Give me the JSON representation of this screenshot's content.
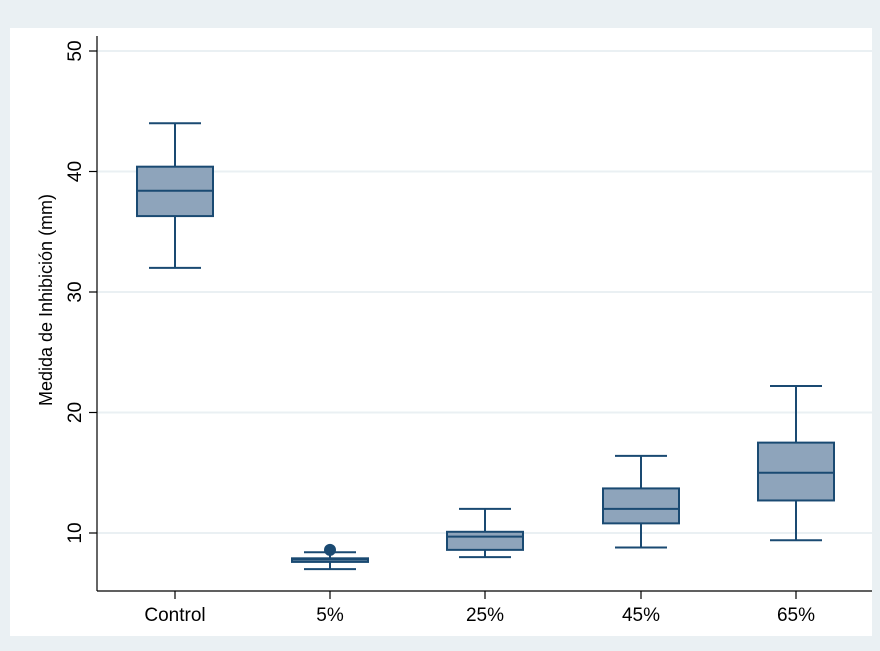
{
  "chart_data": {
    "type": "box",
    "ylabel": "Medida de Inhibición (mm)",
    "ylim": [
      5,
      51
    ],
    "yticks": [
      10,
      20,
      30,
      40,
      50
    ],
    "grid": true,
    "legend": "none",
    "categories": [
      "Control",
      "5%",
      "25%",
      "45%",
      "65%"
    ],
    "boxes": [
      {
        "category": "Control",
        "whisker_low": 32.0,
        "q1": 36.3,
        "median": 38.4,
        "q3": 40.4,
        "whisker_high": 44.0,
        "outliers": []
      },
      {
        "category": "5%",
        "whisker_low": 7.0,
        "q1": 7.6,
        "median": 7.8,
        "q3": 7.9,
        "whisker_high": 8.4,
        "outliers": [
          8.6
        ]
      },
      {
        "category": "25%",
        "whisker_low": 8.0,
        "q1": 8.6,
        "median": 9.7,
        "q3": 10.1,
        "whisker_high": 12.0,
        "outliers": []
      },
      {
        "category": "45%",
        "whisker_low": 8.8,
        "q1": 10.8,
        "median": 12.0,
        "q3": 13.7,
        "whisker_high": 16.4,
        "outliers": []
      },
      {
        "category": "65%",
        "whisker_low": 9.4,
        "q1": 12.7,
        "median": 15.0,
        "q3": 17.5,
        "whisker_high": 22.2,
        "outliers": []
      }
    ],
    "colors": {
      "background": "#eaf0f3",
      "plot_background": "#ffffff",
      "box_fill": "#8ea4bb",
      "box_stroke": "#1a4a72",
      "grid": "#eaf0f3",
      "axis": "#000000"
    }
  }
}
